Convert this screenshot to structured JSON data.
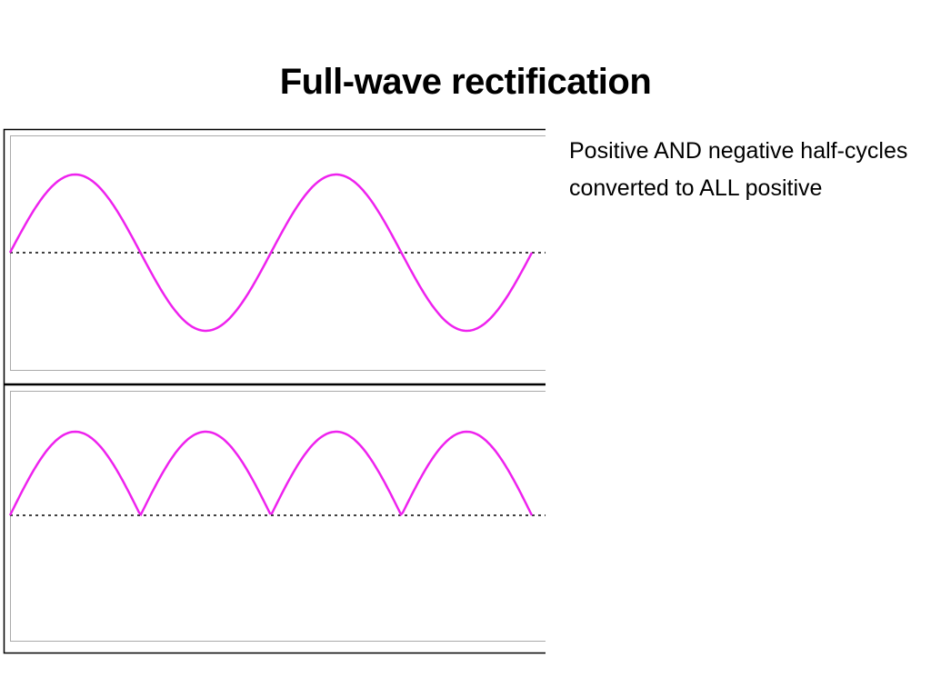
{
  "title": "Full-wave rectification",
  "body": "Positive AND negative half-cycles converted to ALL positive"
}
